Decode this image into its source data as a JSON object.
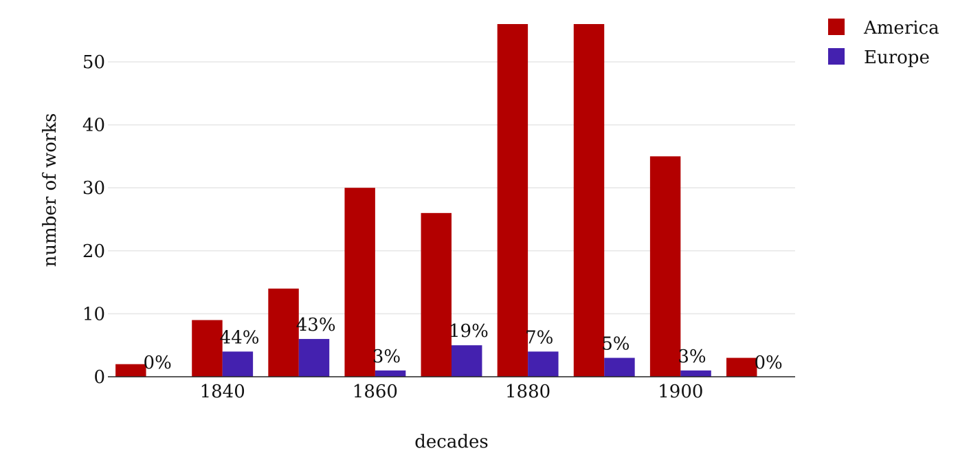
{
  "chart_data": {
    "type": "bar",
    "x": [
      1830,
      1840,
      1850,
      1860,
      1870,
      1880,
      1890,
      1900,
      1910
    ],
    "x_ticks": [
      "1840",
      "1860",
      "1880",
      "1900"
    ],
    "series": [
      {
        "name": "America",
        "color": "#b30000",
        "values": [
          2,
          9,
          14,
          30,
          26,
          56,
          56,
          35,
          3
        ]
      },
      {
        "name": "Europe",
        "color": "#4421af",
        "values": [
          0,
          4,
          6,
          1,
          5,
          4,
          3,
          1,
          0
        ]
      }
    ],
    "data_labels": [
      "0%",
      "44%",
      "43%",
      "3%",
      "19%",
      "7%",
      "5%",
      "3%",
      "0%"
    ],
    "xlabel": "decades",
    "ylabel": "number of works",
    "ylim": [
      0,
      56
    ],
    "yticks": [
      0,
      10,
      20,
      30,
      40,
      50
    ],
    "grid": true,
    "legend_position": "top-right"
  }
}
